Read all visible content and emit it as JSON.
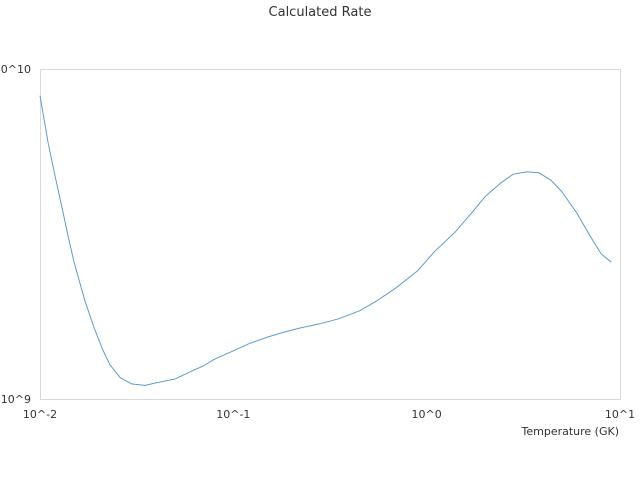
{
  "chart_data": {
    "type": "line",
    "title": "Calculated Rate",
    "xlabel": "Temperature (GK)",
    "ylabel": "",
    "x_scale": "log",
    "y_scale": "log",
    "xlim": [
      0.01,
      10
    ],
    "ylim": [
      1000000000,
      10000000000
    ],
    "grid": false,
    "legend": "none",
    "x_ticks": [
      {
        "value": 0.01,
        "label": "10^-2"
      },
      {
        "value": 0.1,
        "label": "10^-1"
      },
      {
        "value": 1,
        "label": "10^0"
      },
      {
        "value": 10,
        "label": "10^1"
      }
    ],
    "y_ticks": [
      {
        "value": 1000000000,
        "label": "10^9"
      },
      {
        "value": 10000000000,
        "label": "10^10"
      }
    ],
    "series": [
      {
        "color": "#5b9bd5",
        "x": [
          0.01,
          0.011,
          0.012,
          0.013,
          0.014,
          0.015,
          0.017,
          0.019,
          0.021,
          0.023,
          0.026,
          0.03,
          0.035,
          0.04,
          0.05,
          0.06,
          0.07,
          0.08,
          0.1,
          0.12,
          0.15,
          0.18,
          0.22,
          0.28,
          0.35,
          0.45,
          0.55,
          0.7,
          0.9,
          1.1,
          1.4,
          1.7,
          2.0,
          2.4,
          2.8,
          3.3,
          3.8,
          4.4,
          5.0,
          6.0,
          7.0,
          8.0,
          9.0
        ],
        "y": [
          8300000000,
          6000000000,
          4700000000,
          3800000000,
          3100000000,
          2600000000,
          2000000000,
          1650000000,
          1420000000,
          1270000000,
          1160000000,
          1110000000,
          1100000000,
          1120000000,
          1150000000,
          1210000000,
          1260000000,
          1320000000,
          1400000000,
          1470000000,
          1540000000,
          1590000000,
          1640000000,
          1690000000,
          1750000000,
          1850000000,
          1980000000,
          2180000000,
          2450000000,
          2800000000,
          3200000000,
          3650000000,
          4100000000,
          4500000000,
          4800000000,
          4880000000,
          4850000000,
          4600000000,
          4250000000,
          3650000000,
          3120000000,
          2750000000,
          2600000000
        ]
      }
    ]
  }
}
